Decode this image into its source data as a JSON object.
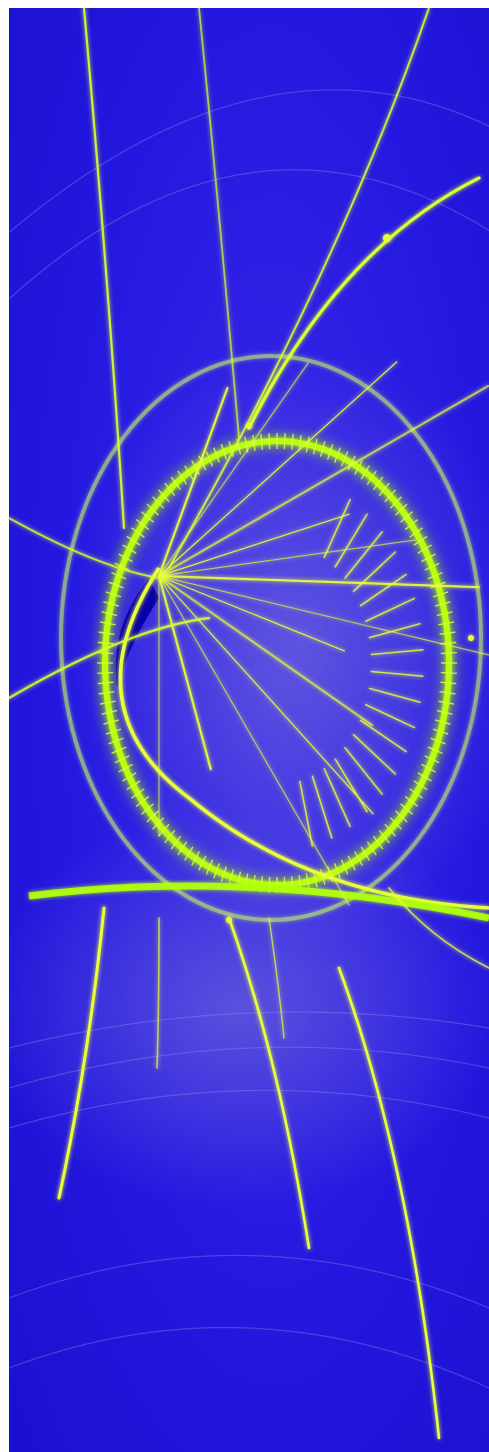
{
  "palette": {
    "background": "#2418e0",
    "background_deep": "#1a0fc8",
    "glow_green": "#a8f000",
    "glow_yellow": "#e8ff3a",
    "haze": "#8f8ad8",
    "void": "#0a00a8"
  }
}
